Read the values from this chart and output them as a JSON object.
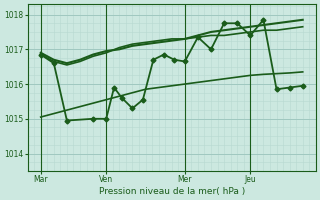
{
  "bg_color": "#cce8e0",
  "grid_color_minor": "#b8d8d0",
  "grid_color_major": "#a0c8c0",
  "line_color": "#1a5c1a",
  "xlabel": "Pression niveau de la mer( hPa )",
  "ylim": [
    1013.5,
    1018.3
  ],
  "yticks": [
    1014,
    1015,
    1016,
    1017,
    1018
  ],
  "xtick_labels": [
    "Mar",
    "Ven",
    "Mer",
    "Jeu"
  ],
  "xtick_positions": [
    0.5,
    3.0,
    6.0,
    8.5
  ],
  "vline_positions": [
    0.5,
    3.0,
    6.0,
    8.5
  ],
  "xlim": [
    0.0,
    11.0
  ],
  "series": [
    {
      "x": [
        0.5,
        1.0,
        1.5,
        2.0,
        2.5,
        3.0,
        3.5,
        4.0,
        4.5,
        5.0,
        5.5,
        6.0,
        6.5,
        7.0,
        7.5,
        8.0,
        8.5,
        9.0,
        9.5,
        10.0,
        10.5
      ],
      "y": [
        1016.85,
        1016.65,
        1016.55,
        1016.65,
        1016.8,
        1016.9,
        1017.05,
        1017.15,
        1017.2,
        1017.25,
        1017.3,
        1017.3,
        1017.35,
        1017.4,
        1017.4,
        1017.45,
        1017.5,
        1017.55,
        1017.55,
        1017.6,
        1017.65
      ],
      "marker": null,
      "lw": 1.2
    },
    {
      "x": [
        0.5,
        1.0,
        1.5,
        2.0,
        2.5,
        3.0,
        3.5,
        4.0,
        4.5,
        5.0,
        5.5,
        6.0,
        6.5,
        7.0,
        7.5,
        8.0,
        8.5,
        9.0,
        9.5,
        10.0,
        10.5
      ],
      "y": [
        1016.9,
        1016.7,
        1016.6,
        1016.7,
        1016.85,
        1016.95,
        1017.0,
        1017.1,
        1017.15,
        1017.2,
        1017.25,
        1017.3,
        1017.4,
        1017.5,
        1017.55,
        1017.6,
        1017.65,
        1017.7,
        1017.75,
        1017.8,
        1017.85
      ],
      "marker": null,
      "lw": 1.5
    },
    {
      "x": [
        0.5,
        1.0,
        1.5,
        2.5,
        3.0,
        3.3,
        3.6,
        4.0,
        4.4,
        4.8,
        5.2,
        5.6,
        6.0,
        6.5,
        7.0,
        7.5,
        8.0,
        8.5,
        9.0,
        9.5,
        10.0,
        10.5
      ],
      "y": [
        1016.85,
        1016.6,
        1014.95,
        1015.0,
        1015.0,
        1015.9,
        1015.6,
        1015.3,
        1015.55,
        1016.7,
        1016.85,
        1016.7,
        1016.65,
        1017.35,
        1017.0,
        1017.75,
        1017.75,
        1017.4,
        1017.85,
        1015.85,
        1015.9,
        1015.95
      ],
      "marker": "D",
      "lw": 1.3
    },
    {
      "x": [
        0.5,
        1.0,
        1.5,
        2.0,
        2.5,
        3.0,
        3.5,
        4.0,
        4.5,
        5.0,
        5.5,
        6.0,
        6.5,
        7.0,
        7.5,
        8.0,
        8.5,
        9.0,
        9.5,
        10.0,
        10.5
      ],
      "y": [
        1015.05,
        1015.15,
        1015.25,
        1015.35,
        1015.45,
        1015.55,
        1015.65,
        1015.75,
        1015.85,
        1015.9,
        1015.95,
        1016.0,
        1016.05,
        1016.1,
        1016.15,
        1016.2,
        1016.25,
        1016.28,
        1016.3,
        1016.32,
        1016.35
      ],
      "marker": null,
      "lw": 1.2
    }
  ]
}
